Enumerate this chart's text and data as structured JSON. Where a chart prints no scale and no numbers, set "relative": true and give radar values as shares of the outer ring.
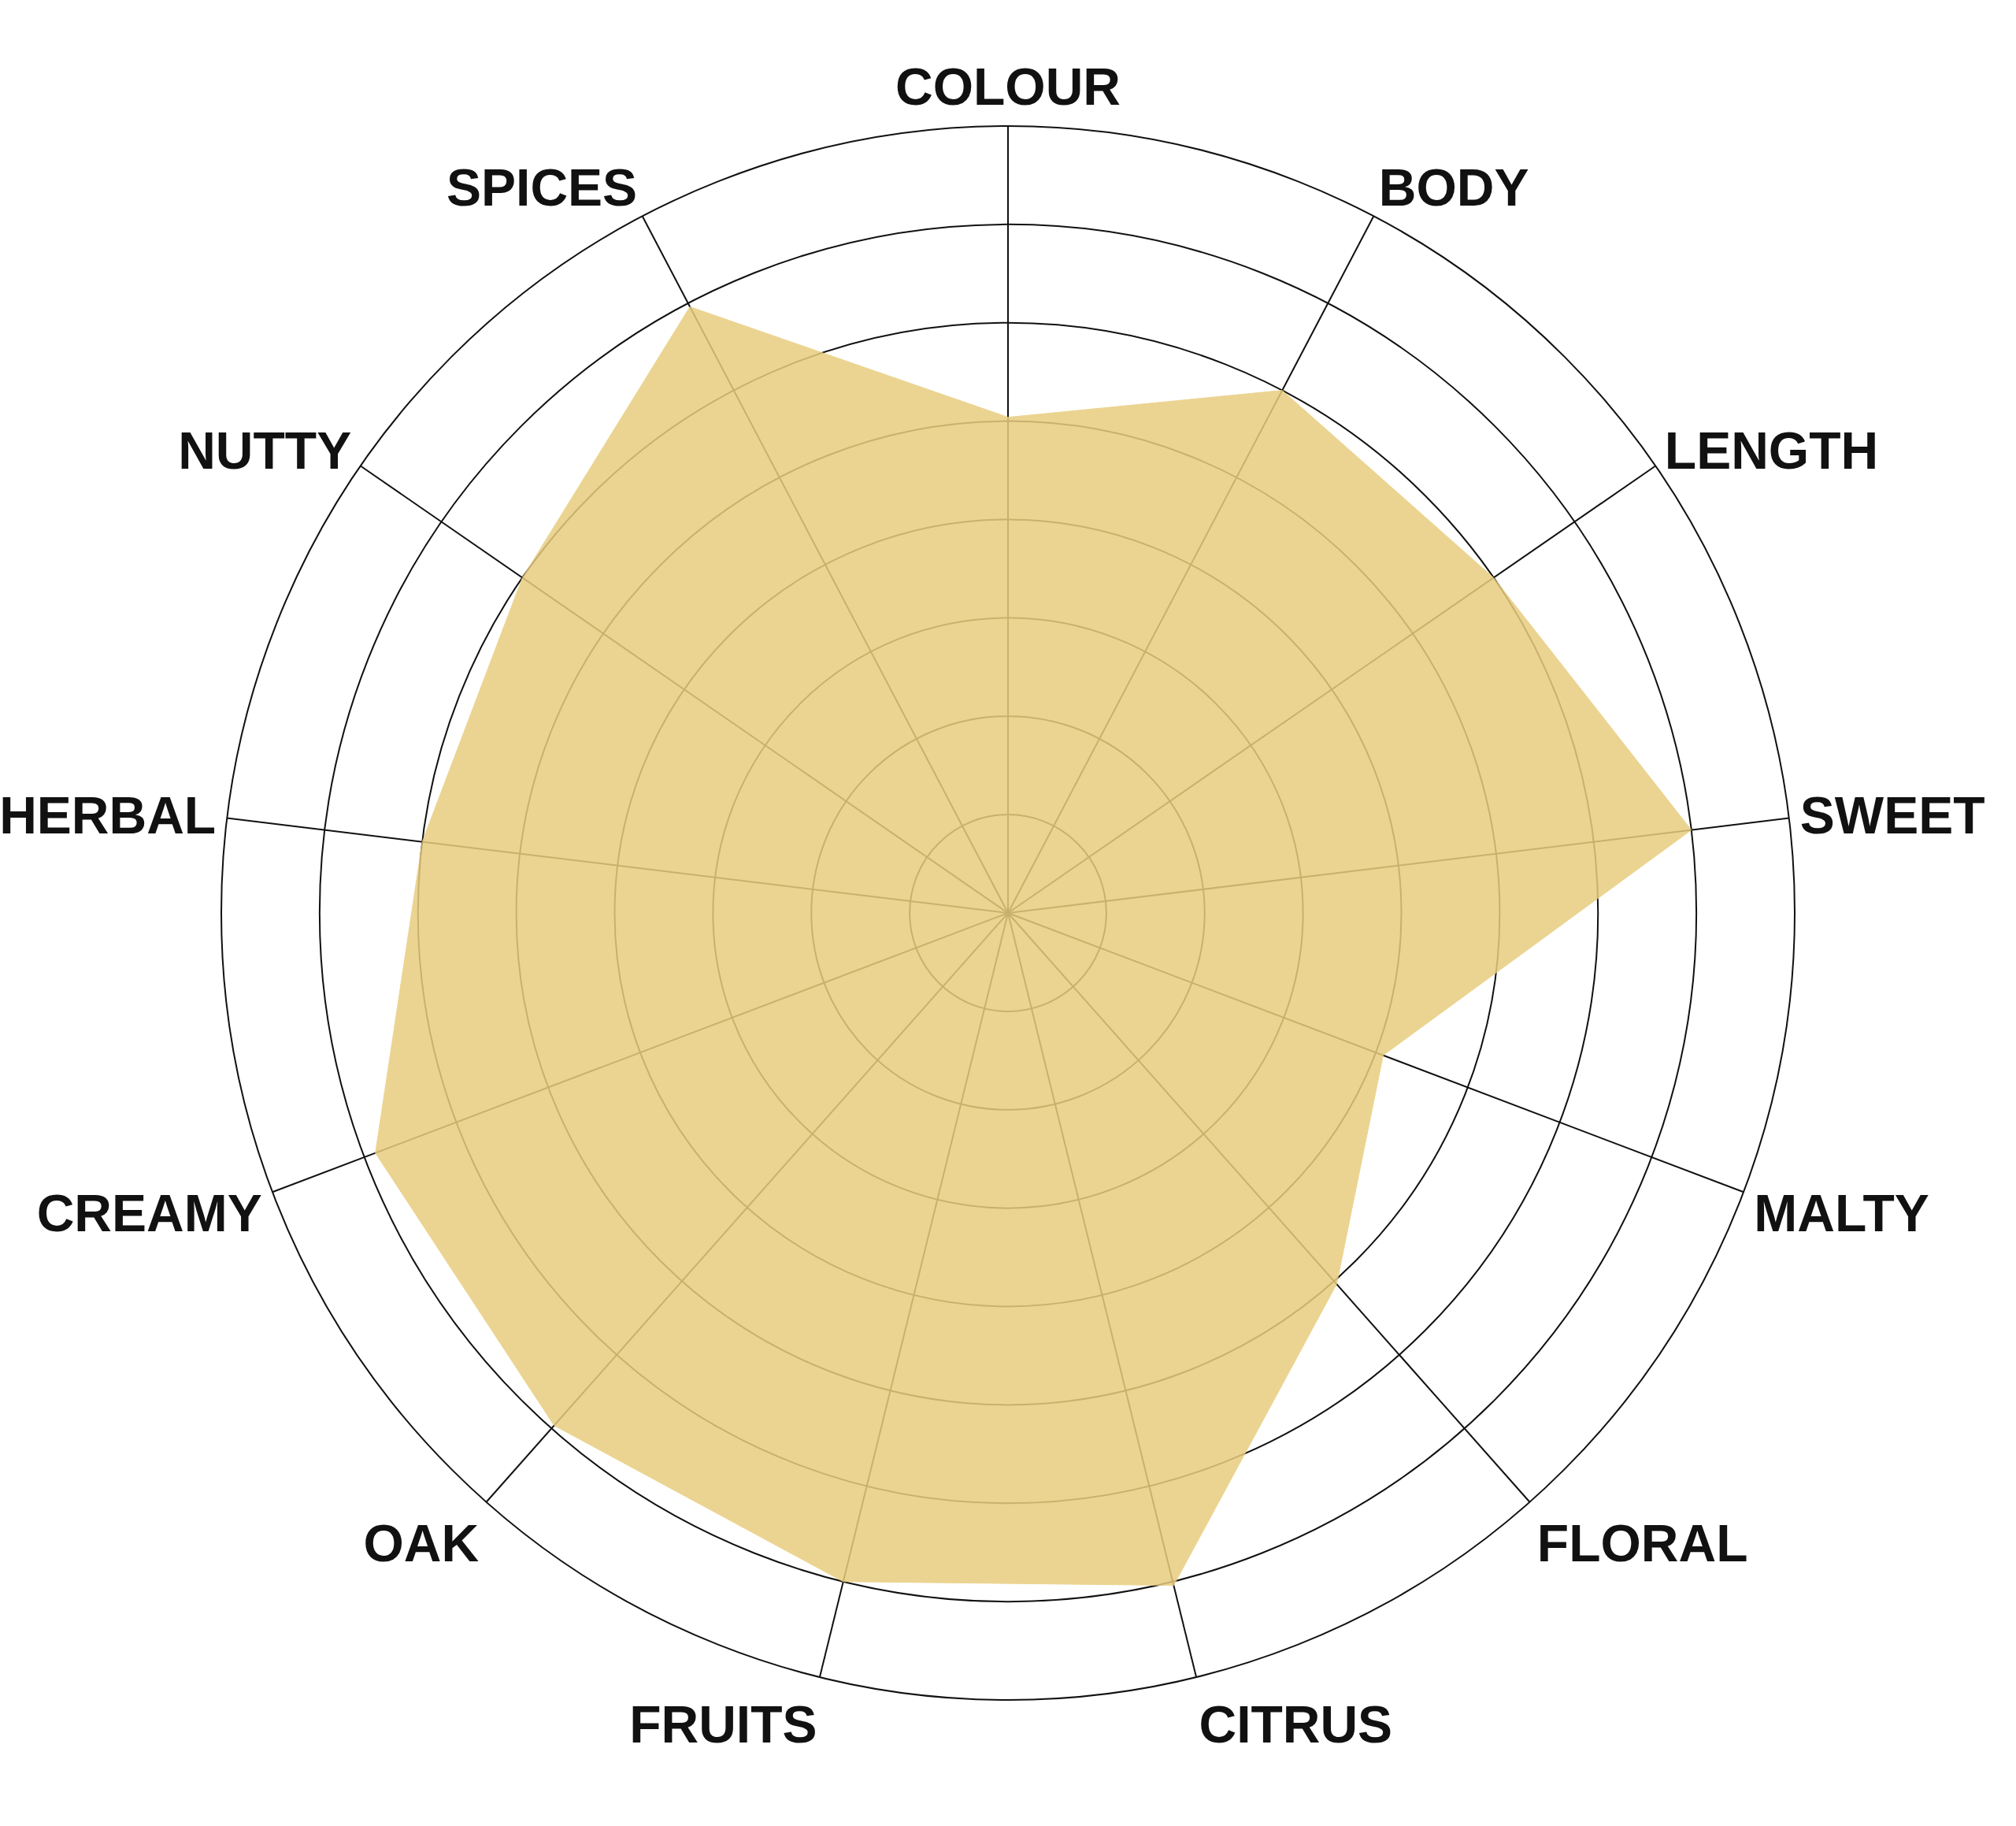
{
  "chart_data": {
    "type": "radar",
    "relative": true,
    "categories": [
      "COLOUR",
      "BODY",
      "LENGTH",
      "SWEET",
      "MALTY",
      "FLORAL",
      "CITRUS",
      "FRUITS",
      "OAK",
      "CREAMY",
      "HERBAL",
      "NUTTY",
      "SPICES"
    ],
    "series": [
      {
        "color": "#e8cd7e",
        "values": [
          0.63,
          0.75,
          0.75,
          0.875,
          0.51,
          0.63,
          0.88,
          0.875,
          0.87,
          0.86,
          0.75,
          0.75,
          0.87
        ]
      }
    ],
    "grid": true
  }
}
